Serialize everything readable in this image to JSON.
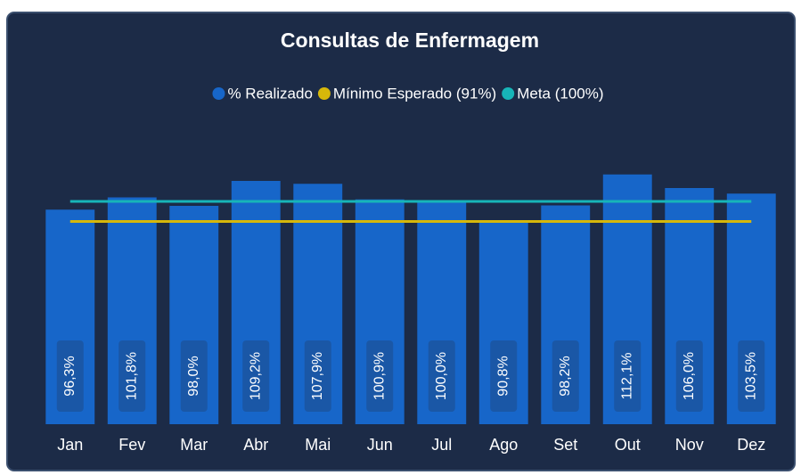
{
  "chart_data": {
    "type": "bar",
    "title": "Consultas de Enfermagem",
    "categories": [
      "Jan",
      "Fev",
      "Mar",
      "Abr",
      "Mai",
      "Jun",
      "Jul",
      "Ago",
      "Set",
      "Out",
      "Nov",
      "Dez"
    ],
    "series": [
      {
        "name": "% Realizado",
        "type": "bar",
        "color": "#1766c9",
        "values": [
          96.3,
          101.8,
          98.0,
          109.2,
          107.9,
          100.9,
          100.0,
          90.8,
          98.2,
          112.1,
          106.0,
          103.5
        ],
        "value_labels": [
          "96,3%",
          "101,8%",
          "98,0%",
          "109,2%",
          "107,9%",
          "100,9%",
          "100,0%",
          "90,8%",
          "98,2%",
          "112,1%",
          "106,0%",
          "103,5%"
        ]
      },
      {
        "name": "Mínimo Esperado (91%)",
        "type": "line",
        "color": "#d6b70a",
        "values": [
          91,
          91,
          91,
          91,
          91,
          91,
          91,
          91,
          91,
          91,
          91,
          91
        ]
      },
      {
        "name": "Meta (100%)",
        "type": "line",
        "color": "#17b5b8",
        "values": [
          100,
          100,
          100,
          100,
          100,
          100,
          100,
          100,
          100,
          100,
          100,
          100
        ]
      }
    ],
    "ylim": [
      0,
      120
    ]
  }
}
